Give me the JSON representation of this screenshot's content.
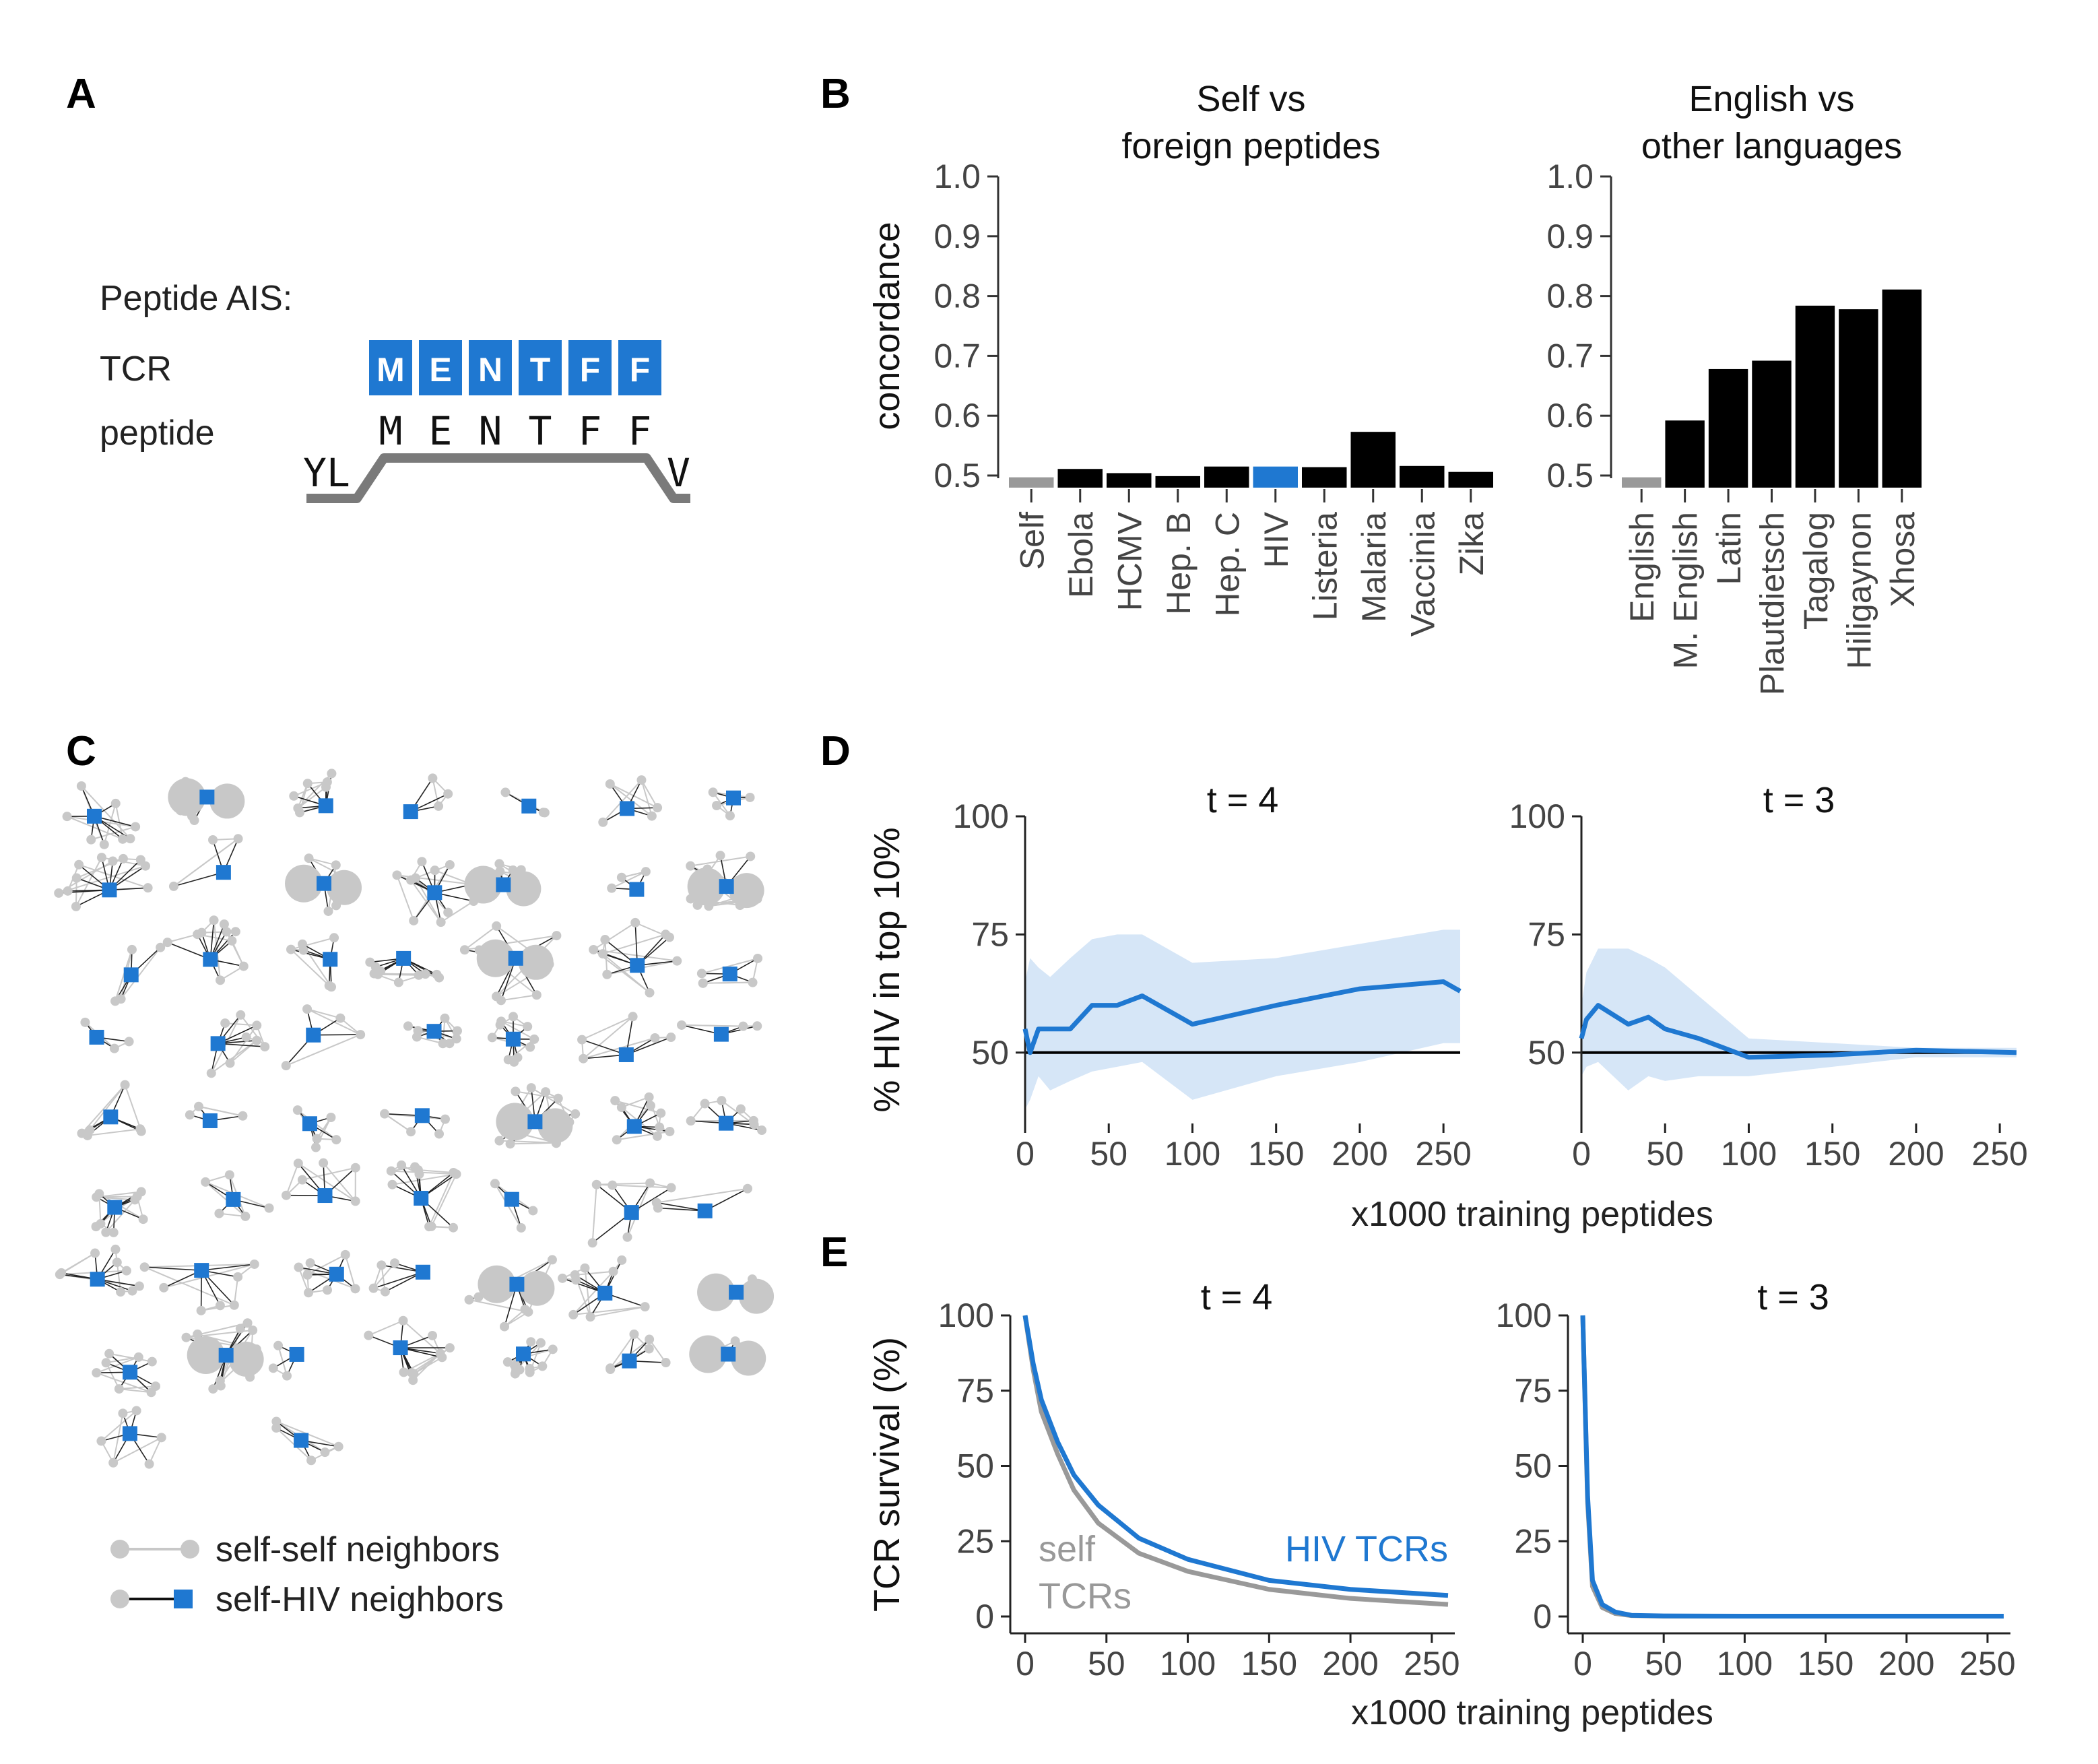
{
  "panels": {
    "a": "A",
    "b": "B",
    "c": "C",
    "d": "D",
    "e": "E"
  },
  "panel_a": {
    "title": "Peptide AIS:",
    "tcr_label": "TCR",
    "peptide_label": "peptide",
    "tcr_letters": [
      "M",
      "E",
      "N",
      "T",
      "F",
      "F"
    ],
    "peptide_letters": [
      "M",
      "E",
      "N",
      "T",
      "F",
      "F"
    ],
    "flank_left": "YL",
    "flank_right": "V",
    "accent": "#1f78d1"
  },
  "panel_c": {
    "legend_self": "self-self neighbors",
    "legend_hiv": "self-HIV neighbors",
    "self_color": "#c8c8c8",
    "hiv_color": "#1f78d1"
  },
  "chart_data": [
    {
      "id": "B1",
      "type": "bar",
      "title": "Self vs\nforeign peptides",
      "ylabel": "concordance",
      "ylim": [
        0.5,
        1.0
      ],
      "yticks": [
        "1.0",
        "0.9",
        "0.8",
        "0.7",
        "0.6",
        "0.5"
      ],
      "categories": [
        "Self",
        "Ebola",
        "HCMV",
        "Hep. B",
        "Hep. C",
        "HIV",
        "Listeria",
        "Malaria",
        "Vaccinia",
        "Zika"
      ],
      "values": [
        0.497,
        0.511,
        0.504,
        0.499,
        0.515,
        0.515,
        0.514,
        0.573,
        0.516,
        0.506
      ],
      "colors": [
        "#999999",
        "#000000",
        "#000000",
        "#000000",
        "#000000",
        "#1f78d1",
        "#000000",
        "#000000",
        "#000000",
        "#000000"
      ]
    },
    {
      "id": "B2",
      "type": "bar",
      "title": "English vs\nother languages",
      "ylim": [
        0.5,
        1.0
      ],
      "yticks": [
        "1.0",
        "0.9",
        "0.8",
        "0.7",
        "0.6",
        "0.5"
      ],
      "categories": [
        "English",
        "M. English",
        "Latin",
        "Plautdietsch",
        "Tagalog",
        "Hiligaynon",
        "Xhosa"
      ],
      "values": [
        0.497,
        0.592,
        0.678,
        0.692,
        0.784,
        0.778,
        0.811
      ],
      "colors": [
        "#999999",
        "#000000",
        "#000000",
        "#000000",
        "#000000",
        "#000000",
        "#000000"
      ]
    },
    {
      "id": "D1",
      "type": "line",
      "title": "t = 4",
      "ylabel": "% HIV in top 10%",
      "xlabel": "x1000 training peptides",
      "xlim": [
        0,
        260
      ],
      "ylim": [
        35,
        100
      ],
      "yticks": [
        "100",
        "75",
        "50"
      ],
      "xticks": [
        "0",
        "50",
        "100",
        "150",
        "200",
        "250"
      ],
      "reference_line": 50,
      "series": [
        {
          "name": "HIV",
          "x": [
            0,
            3,
            8,
            15,
            27,
            40,
            55,
            70,
            100,
            150,
            200,
            250,
            260
          ],
          "y": [
            55,
            50,
            55,
            55,
            55,
            60,
            60,
            62,
            56,
            60,
            63.5,
            65,
            63
          ]
        }
      ],
      "band": {
        "x": [
          0,
          3,
          8,
          15,
          27,
          40,
          55,
          70,
          100,
          150,
          200,
          250,
          260
        ],
        "upper": [
          65,
          70,
          68,
          66,
          70,
          74,
          75,
          75,
          69,
          70,
          73,
          76,
          76
        ],
        "lower": [
          38,
          40,
          45,
          42,
          44,
          46,
          47,
          48,
          40,
          45,
          48,
          52,
          52
        ]
      }
    },
    {
      "id": "D2",
      "type": "line",
      "title": "t = 3",
      "xlim": [
        0,
        260
      ],
      "ylim": [
        35,
        100
      ],
      "yticks": [
        "100",
        "75",
        "50"
      ],
      "xticks": [
        "0",
        "50",
        "100",
        "150",
        "200",
        "250"
      ],
      "reference_line": 50,
      "series": [
        {
          "name": "HIV",
          "x": [
            0,
            3,
            10,
            28,
            40,
            50,
            70,
            100,
            150,
            200,
            260
          ],
          "y": [
            53,
            57,
            60,
            56,
            57.5,
            55,
            53,
            49,
            49.5,
            50.5,
            50
          ]
        }
      ],
      "band": {
        "x": [
          0,
          3,
          10,
          28,
          40,
          50,
          70,
          100,
          150,
          200,
          260
        ],
        "upper": [
          60,
          67,
          72,
          72,
          70,
          68,
          62,
          53,
          52,
          51,
          51
        ],
        "lower": [
          45,
          47,
          48,
          42,
          45,
          44,
          45,
          45,
          47,
          49,
          49
        ]
      }
    },
    {
      "id": "E1",
      "type": "line",
      "title": "t = 4",
      "ylabel": "TCR survival (%)",
      "xlabel": "x1000 training peptides",
      "xlim": [
        0,
        260
      ],
      "ylim": [
        0,
        100
      ],
      "yticks": [
        "100",
        "75",
        "50",
        "25",
        "0"
      ],
      "xticks": [
        "0",
        "50",
        "100",
        "150",
        "200",
        "250"
      ],
      "series": [
        {
          "name": "HIV TCRs",
          "color": "#1f78d1",
          "x": [
            0,
            5,
            10,
            20,
            30,
            45,
            70,
            100,
            150,
            200,
            260
          ],
          "y": [
            100,
            84,
            72,
            58,
            47,
            37,
            26,
            19,
            12,
            9,
            7
          ]
        },
        {
          "name": "self TCRs",
          "color": "#999999",
          "x": [
            0,
            5,
            10,
            20,
            30,
            45,
            70,
            100,
            150,
            200,
            260
          ],
          "y": [
            100,
            82,
            68,
            54,
            42,
            31,
            21,
            15,
            9,
            6,
            4
          ]
        }
      ],
      "annotations": [
        {
          "text": "HIV TCRs",
          "color": "#1f78d1"
        },
        {
          "text": "self",
          "color": "#999999"
        },
        {
          "text": "TCRs",
          "color": "#999999"
        }
      ]
    },
    {
      "id": "E2",
      "type": "line",
      "title": "t = 3",
      "xlim": [
        0,
        260
      ],
      "ylim": [
        0,
        100
      ],
      "yticks": [
        "100",
        "75",
        "50",
        "25",
        "0"
      ],
      "xticks": [
        "0",
        "50",
        "100",
        "150",
        "200",
        "250"
      ],
      "series": [
        {
          "name": "HIV TCRs",
          "color": "#1f78d1",
          "x": [
            0,
            3,
            6,
            12,
            20,
            30,
            50,
            100,
            260
          ],
          "y": [
            100,
            40,
            12,
            4,
            1.5,
            0.4,
            0.2,
            0.1,
            0.1
          ]
        },
        {
          "name": "self TCRs",
          "color": "#999999",
          "x": [
            0,
            3,
            6,
            12,
            20,
            30,
            50,
            100,
            260
          ],
          "y": [
            100,
            38,
            10,
            3,
            1,
            0.3,
            0.1,
            0.1,
            0.1
          ]
        }
      ]
    }
  ]
}
